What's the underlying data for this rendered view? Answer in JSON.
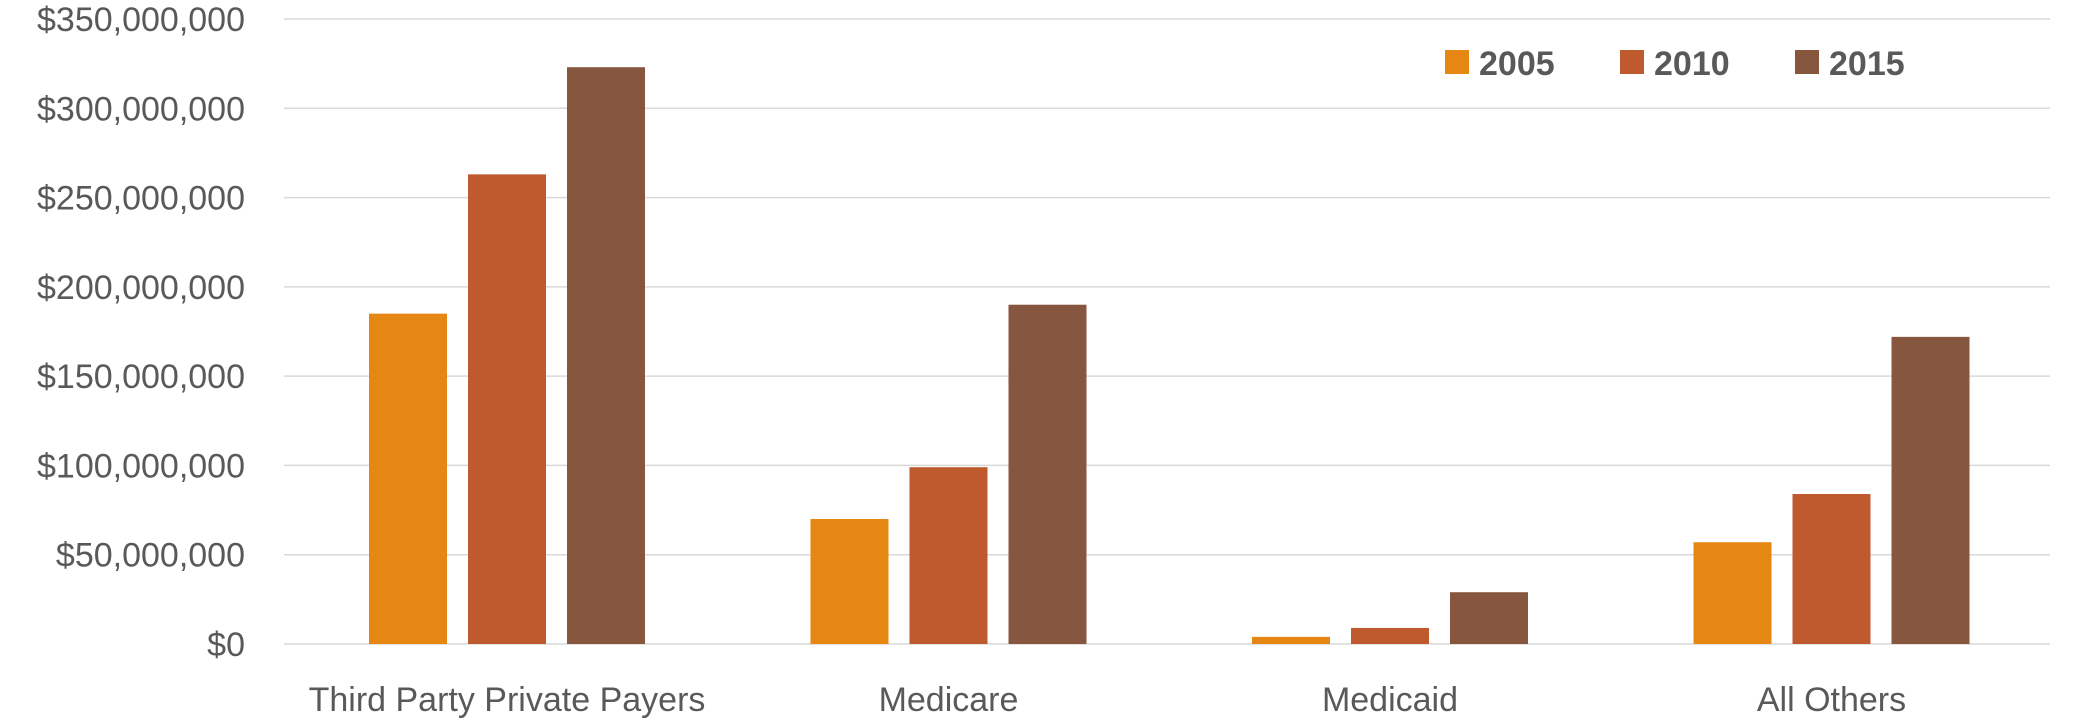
{
  "chart_data": {
    "type": "bar",
    "title": "",
    "xlabel": "",
    "ylabel": "",
    "categories": [
      "Third Party Private Payers",
      "Medicare",
      "Medicaid",
      "All Others"
    ],
    "series": [
      {
        "name": "2005",
        "color": "#E68613",
        "values": [
          185000000,
          70000000,
          4000000,
          57000000
        ]
      },
      {
        "name": "2010",
        "color": "#BE5A2E",
        "values": [
          263000000,
          99000000,
          9000000,
          84000000
        ]
      },
      {
        "name": "2015",
        "color": "#86563E",
        "values": [
          323000000,
          190000000,
          29000000,
          172000000
        ]
      }
    ],
    "ylim": [
      0,
      350000000
    ],
    "yticks": [
      "$0",
      "$50,000,000",
      "$100,000,000",
      "$150,000,000",
      "$200,000,000",
      "$250,000,000",
      "$300,000,000",
      "$350,000,000"
    ],
    "grid": true,
    "legend": "top-right"
  }
}
